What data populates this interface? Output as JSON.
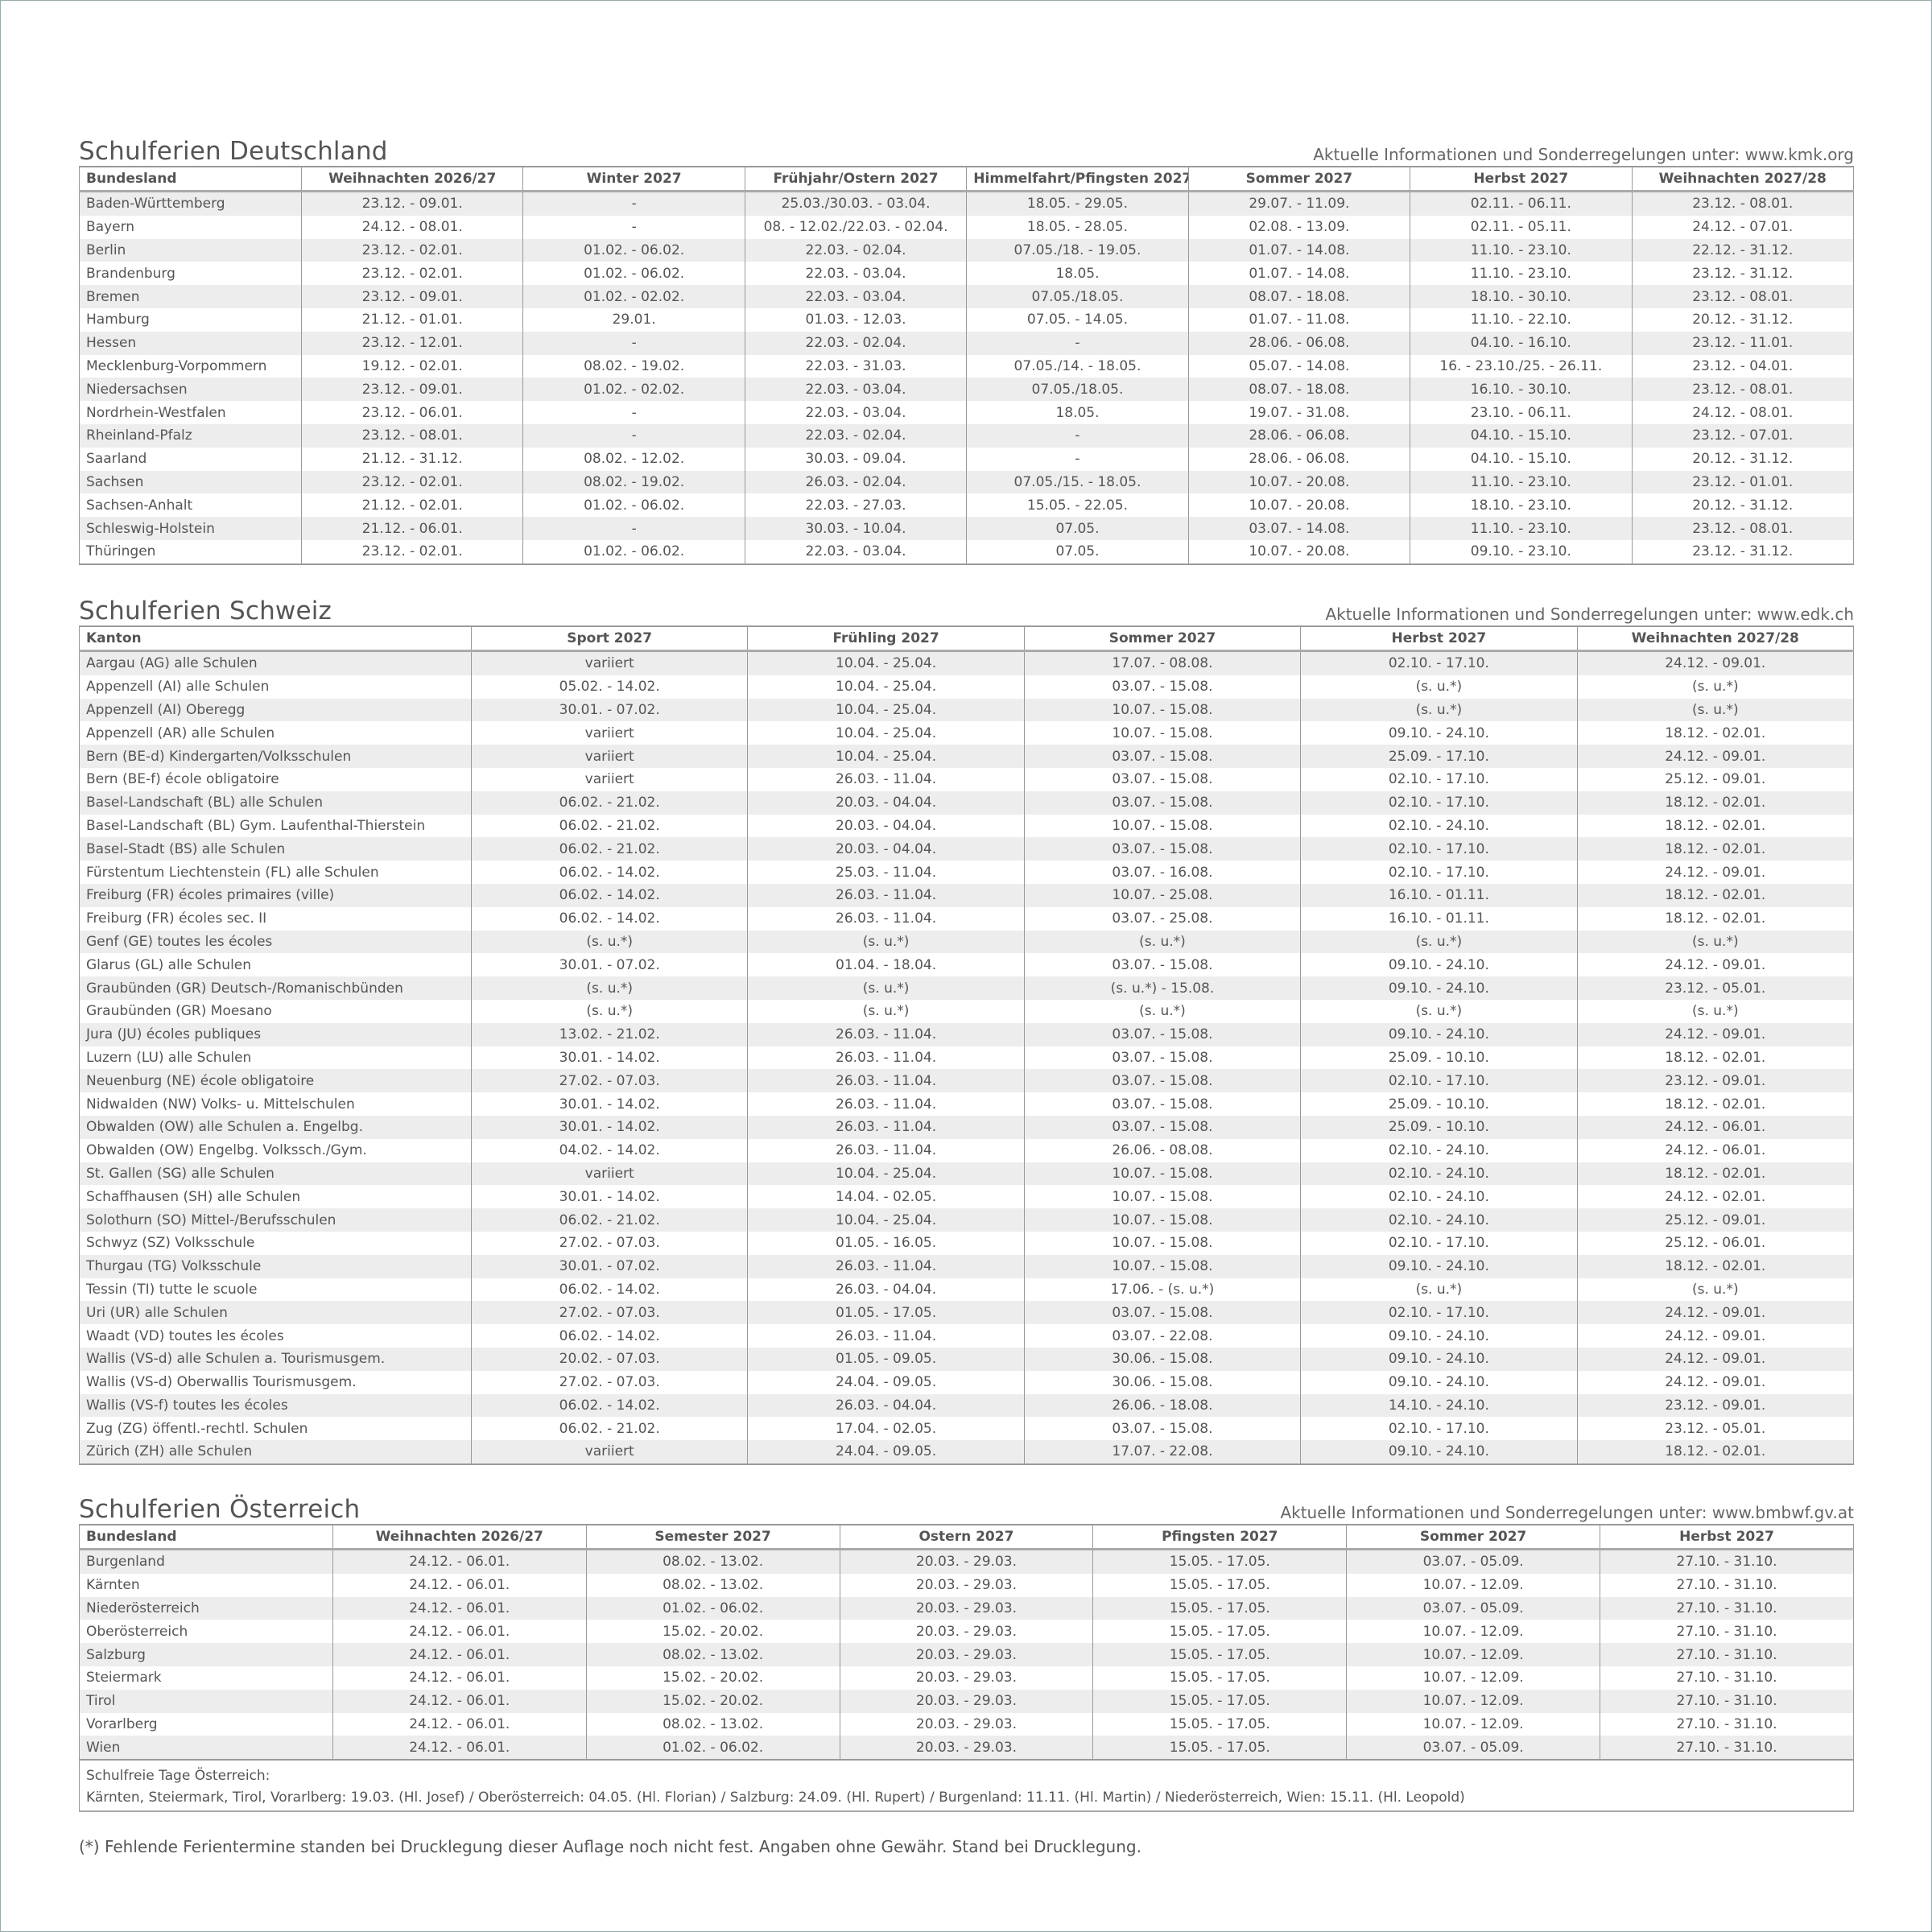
{
  "germany": {
    "title": "Schulferien Deutschland",
    "info": "Aktuelle Informationen und Sonderregelungen unter: www.kmk.org",
    "columns": [
      "Bundesland",
      "Weihnachten 2026/27",
      "Winter 2027",
      "Frühjahr/Ostern 2027",
      "Himmelfahrt/Pfingsten 2027",
      "Sommer 2027",
      "Herbst 2027",
      "Weihnachten 2027/28"
    ],
    "rows": [
      [
        "Baden-Württemberg",
        "23.12. - 09.01.",
        "-",
        "25.03./30.03. - 03.04.",
        "18.05. - 29.05.",
        "29.07. - 11.09.",
        "02.11. - 06.11.",
        "23.12. - 08.01."
      ],
      [
        "Bayern",
        "24.12. - 08.01.",
        "-",
        "08. - 12.02./22.03. - 02.04.",
        "18.05. - 28.05.",
        "02.08. - 13.09.",
        "02.11. - 05.11.",
        "24.12. - 07.01."
      ],
      [
        "Berlin",
        "23.12. - 02.01.",
        "01.02. - 06.02.",
        "22.03. - 02.04.",
        "07.05./18. - 19.05.",
        "01.07. - 14.08.",
        "11.10. - 23.10.",
        "22.12. - 31.12."
      ],
      [
        "Brandenburg",
        "23.12. - 02.01.",
        "01.02. - 06.02.",
        "22.03. - 03.04.",
        "18.05.",
        "01.07. - 14.08.",
        "11.10. - 23.10.",
        "23.12. - 31.12."
      ],
      [
        "Bremen",
        "23.12. - 09.01.",
        "01.02. - 02.02.",
        "22.03. - 03.04.",
        "07.05./18.05.",
        "08.07. - 18.08.",
        "18.10. - 30.10.",
        "23.12. - 08.01."
      ],
      [
        "Hamburg",
        "21.12. - 01.01.",
        "29.01.",
        "01.03. - 12.03.",
        "07.05. - 14.05.",
        "01.07. - 11.08.",
        "11.10. - 22.10.",
        "20.12. - 31.12."
      ],
      [
        "Hessen",
        "23.12. - 12.01.",
        "-",
        "22.03. - 02.04.",
        "-",
        "28.06. - 06.08.",
        "04.10. - 16.10.",
        "23.12. - 11.01."
      ],
      [
        "Mecklenburg-Vorpommern",
        "19.12. - 02.01.",
        "08.02. - 19.02.",
        "22.03. - 31.03.",
        "07.05./14. - 18.05.",
        "05.07. - 14.08.",
        "16. - 23.10./25. - 26.11.",
        "23.12. - 04.01."
      ],
      [
        "Niedersachsen",
        "23.12. - 09.01.",
        "01.02. - 02.02.",
        "22.03. - 03.04.",
        "07.05./18.05.",
        "08.07. - 18.08.",
        "16.10. - 30.10.",
        "23.12. - 08.01."
      ],
      [
        "Nordrhein-Westfalen",
        "23.12. - 06.01.",
        "-",
        "22.03. - 03.04.",
        "18.05.",
        "19.07. - 31.08.",
        "23.10. - 06.11.",
        "24.12. - 08.01."
      ],
      [
        "Rheinland-Pfalz",
        "23.12. - 08.01.",
        "-",
        "22.03. - 02.04.",
        "-",
        "28.06. - 06.08.",
        "04.10. - 15.10.",
        "23.12. - 07.01."
      ],
      [
        "Saarland",
        "21.12. - 31.12.",
        "08.02. - 12.02.",
        "30.03. - 09.04.",
        "-",
        "28.06. - 06.08.",
        "04.10. - 15.10.",
        "20.12. - 31.12."
      ],
      [
        "Sachsen",
        "23.12. - 02.01.",
        "08.02. - 19.02.",
        "26.03. - 02.04.",
        "07.05./15. - 18.05.",
        "10.07. - 20.08.",
        "11.10. - 23.10.",
        "23.12. - 01.01."
      ],
      [
        "Sachsen-Anhalt",
        "21.12. - 02.01.",
        "01.02. - 06.02.",
        "22.03. - 27.03.",
        "15.05. - 22.05.",
        "10.07. - 20.08.",
        "18.10. - 23.10.",
        "20.12. - 31.12."
      ],
      [
        "Schleswig-Holstein",
        "21.12. - 06.01.",
        "-",
        "30.03. - 10.04.",
        "07.05.",
        "03.07. - 14.08.",
        "11.10. - 23.10.",
        "23.12. - 08.01."
      ],
      [
        "Thüringen",
        "23.12. - 02.01.",
        "01.02. - 06.02.",
        "22.03. - 03.04.",
        "07.05.",
        "10.07. - 20.08.",
        "09.10. - 23.10.",
        "23.12. - 31.12."
      ]
    ]
  },
  "switzerland": {
    "title": "Schulferien Schweiz",
    "info": "Aktuelle Informationen und Sonderregelungen unter: www.edk.ch",
    "columns": [
      "Kanton",
      "Sport 2027",
      "Frühling 2027",
      "Sommer 2027",
      "Herbst 2027",
      "Weihnachten 2027/28"
    ],
    "rows": [
      [
        "Aargau (AG) alle Schulen",
        "variiert",
        "10.04. - 25.04.",
        "17.07. - 08.08.",
        "02.10. - 17.10.",
        "24.12. - 09.01."
      ],
      [
        "Appenzell (AI) alle Schulen",
        "05.02. - 14.02.",
        "10.04. - 25.04.",
        "03.07. - 15.08.",
        "(s. u.*)",
        "(s. u.*)"
      ],
      [
        "Appenzell (AI) Oberegg",
        "30.01. - 07.02.",
        "10.04. - 25.04.",
        "10.07. - 15.08.",
        "(s. u.*)",
        "(s. u.*)"
      ],
      [
        "Appenzell (AR) alle Schulen",
        "variiert",
        "10.04. - 25.04.",
        "10.07. - 15.08.",
        "09.10. - 24.10.",
        "18.12. - 02.01."
      ],
      [
        "Bern (BE-d) Kindergarten/Volksschulen",
        "variiert",
        "10.04. - 25.04.",
        "03.07. - 15.08.",
        "25.09. - 17.10.",
        "24.12. - 09.01."
      ],
      [
        "Bern (BE-f) école obligatoire",
        "variiert",
        "26.03. - 11.04.",
        "03.07. - 15.08.",
        "02.10. - 17.10.",
        "25.12. - 09.01."
      ],
      [
        "Basel-Landschaft (BL) alle Schulen",
        "06.02. - 21.02.",
        "20.03. - 04.04.",
        "03.07. - 15.08.",
        "02.10. - 17.10.",
        "18.12. - 02.01."
      ],
      [
        "Basel-Landschaft (BL) Gym. Laufenthal-Thierstein",
        "06.02. - 21.02.",
        "20.03. - 04.04.",
        "10.07. - 15.08.",
        "02.10. - 24.10.",
        "18.12. - 02.01."
      ],
      [
        "Basel-Stadt (BS) alle Schulen",
        "06.02. - 21.02.",
        "20.03. - 04.04.",
        "03.07. - 15.08.",
        "02.10. - 17.10.",
        "18.12. - 02.01."
      ],
      [
        "Fürstentum Liechtenstein (FL) alle Schulen",
        "06.02. - 14.02.",
        "25.03. - 11.04.",
        "03.07. - 16.08.",
        "02.10. - 17.10.",
        "24.12. - 09.01."
      ],
      [
        "Freiburg (FR) écoles primaires (ville)",
        "06.02. - 14.02.",
        "26.03. - 11.04.",
        "10.07. - 25.08.",
        "16.10. - 01.11.",
        "18.12. - 02.01."
      ],
      [
        "Freiburg (FR) écoles sec. II",
        "06.02. - 14.02.",
        "26.03. - 11.04.",
        "03.07. - 25.08.",
        "16.10. - 01.11.",
        "18.12. - 02.01."
      ],
      [
        "Genf (GE) toutes les écoles",
        "(s. u.*)",
        "(s. u.*)",
        "(s. u.*)",
        "(s. u.*)",
        "(s. u.*)"
      ],
      [
        "Glarus (GL) alle Schulen",
        "30.01. - 07.02.",
        "01.04. - 18.04.",
        "03.07. - 15.08.",
        "09.10. - 24.10.",
        "24.12. - 09.01."
      ],
      [
        "Graubünden (GR) Deutsch-/Romanischbünden",
        "(s. u.*)",
        "(s. u.*)",
        "(s. u.*) - 15.08.",
        "09.10. - 24.10.",
        "23.12. - 05.01."
      ],
      [
        "Graubünden (GR) Moesano",
        "(s. u.*)",
        "(s. u.*)",
        "(s. u.*)",
        "(s. u.*)",
        "(s. u.*)"
      ],
      [
        "Jura (JU) écoles publiques",
        "13.02. - 21.02.",
        "26.03. - 11.04.",
        "03.07. - 15.08.",
        "09.10. - 24.10.",
        "24.12. - 09.01."
      ],
      [
        "Luzern (LU) alle Schulen",
        "30.01. - 14.02.",
        "26.03. - 11.04.",
        "03.07. - 15.08.",
        "25.09. - 10.10.",
        "18.12. - 02.01."
      ],
      [
        "Neuenburg (NE) école obligatoire",
        "27.02. - 07.03.",
        "26.03. - 11.04.",
        "03.07. - 15.08.",
        "02.10. - 17.10.",
        "23.12. - 09.01."
      ],
      [
        "Nidwalden (NW) Volks- u. Mittelschulen",
        "30.01. - 14.02.",
        "26.03. - 11.04.",
        "03.07. - 15.08.",
        "25.09. - 10.10.",
        "18.12. - 02.01."
      ],
      [
        "Obwalden (OW) alle Schulen a. Engelbg.",
        "30.01. - 14.02.",
        "26.03. - 11.04.",
        "03.07. - 15.08.",
        "25.09. - 10.10.",
        "24.12. - 06.01."
      ],
      [
        "Obwalden (OW) Engelbg. Volkssch./Gym.",
        "04.02. - 14.02.",
        "26.03. - 11.04.",
        "26.06. - 08.08.",
        "02.10. - 24.10.",
        "24.12. - 06.01."
      ],
      [
        "St. Gallen (SG) alle Schulen",
        "variiert",
        "10.04. - 25.04.",
        "10.07. - 15.08.",
        "02.10. - 24.10.",
        "18.12. - 02.01."
      ],
      [
        "Schaffhausen (SH) alle Schulen",
        "30.01. - 14.02.",
        "14.04. - 02.05.",
        "10.07. - 15.08.",
        "02.10. - 24.10.",
        "24.12. - 02.01."
      ],
      [
        "Solothurn (SO) Mittel-/Berufsschulen",
        "06.02. - 21.02.",
        "10.04. - 25.04.",
        "10.07. - 15.08.",
        "02.10. - 24.10.",
        "25.12. - 09.01."
      ],
      [
        "Schwyz (SZ) Volksschule",
        "27.02. - 07.03.",
        "01.05. - 16.05.",
        "10.07. - 15.08.",
        "02.10. - 17.10.",
        "25.12. - 06.01."
      ],
      [
        "Thurgau (TG) Volksschule",
        "30.01. - 07.02.",
        "26.03. - 11.04.",
        "10.07. - 15.08.",
        "09.10. - 24.10.",
        "18.12. - 02.01."
      ],
      [
        "Tessin (TI) tutte le scuole",
        "06.02. - 14.02.",
        "26.03. - 04.04.",
        "17.06. - (s. u.*)",
        "(s. u.*)",
        "(s. u.*)"
      ],
      [
        "Uri (UR) alle Schulen",
        "27.02. - 07.03.",
        "01.05. - 17.05.",
        "03.07. - 15.08.",
        "02.10. - 17.10.",
        "24.12. - 09.01."
      ],
      [
        "Waadt (VD) toutes les écoles",
        "06.02. - 14.02.",
        "26.03. - 11.04.",
        "03.07. - 22.08.",
        "09.10. - 24.10.",
        "24.12. - 09.01."
      ],
      [
        "Wallis (VS-d) alle Schulen a. Tourismusgem.",
        "20.02. - 07.03.",
        "01.05. - 09.05.",
        "30.06. - 15.08.",
        "09.10. - 24.10.",
        "24.12. - 09.01."
      ],
      [
        "Wallis (VS-d) Oberwallis Tourismusgem.",
        "27.02. - 07.03.",
        "24.04. - 09.05.",
        "30.06. - 15.08.",
        "09.10. - 24.10.",
        "24.12. - 09.01."
      ],
      [
        "Wallis (VS-f) toutes les écoles",
        "06.02. - 14.02.",
        "26.03. - 04.04.",
        "26.06. - 18.08.",
        "14.10. - 24.10.",
        "23.12. - 09.01."
      ],
      [
        "Zug (ZG) öffentl.-rechtl. Schulen",
        "06.02. - 21.02.",
        "17.04. - 02.05.",
        "03.07. - 15.08.",
        "02.10. - 17.10.",
        "23.12. - 05.01."
      ],
      [
        "Zürich (ZH) alle Schulen",
        "variiert",
        "24.04. - 09.05.",
        "17.07. - 22.08.",
        "09.10. - 24.10.",
        "18.12. - 02.01."
      ]
    ]
  },
  "austria": {
    "title": "Schulferien Österreich",
    "info": "Aktuelle Informationen und Sonderregelungen unter: www.bmbwf.gv.at",
    "columns": [
      "Bundesland",
      "Weihnachten 2026/27",
      "Semester 2027",
      "Ostern 2027",
      "Pfingsten 2027",
      "Sommer 2027",
      "Herbst 2027"
    ],
    "rows": [
      [
        "Burgenland",
        "24.12. - 06.01.",
        "08.02. - 13.02.",
        "20.03. - 29.03.",
        "15.05. - 17.05.",
        "03.07. - 05.09.",
        "27.10. - 31.10."
      ],
      [
        "Kärnten",
        "24.12. - 06.01.",
        "08.02. - 13.02.",
        "20.03. - 29.03.",
        "15.05. - 17.05.",
        "10.07. - 12.09.",
        "27.10. - 31.10."
      ],
      [
        "Niederösterreich",
        "24.12. - 06.01.",
        "01.02. - 06.02.",
        "20.03. - 29.03.",
        "15.05. - 17.05.",
        "03.07. - 05.09.",
        "27.10. - 31.10."
      ],
      [
        "Oberösterreich",
        "24.12. - 06.01.",
        "15.02. - 20.02.",
        "20.03. - 29.03.",
        "15.05. - 17.05.",
        "10.07. - 12.09.",
        "27.10. - 31.10."
      ],
      [
        "Salzburg",
        "24.12. - 06.01.",
        "08.02. - 13.02.",
        "20.03. - 29.03.",
        "15.05. - 17.05.",
        "10.07. - 12.09.",
        "27.10. - 31.10."
      ],
      [
        "Steiermark",
        "24.12. - 06.01.",
        "15.02. - 20.02.",
        "20.03. - 29.03.",
        "15.05. - 17.05.",
        "10.07. - 12.09.",
        "27.10. - 31.10."
      ],
      [
        "Tirol",
        "24.12. - 06.01.",
        "15.02. - 20.02.",
        "20.03. - 29.03.",
        "15.05. - 17.05.",
        "10.07. - 12.09.",
        "27.10. - 31.10."
      ],
      [
        "Vorarlberg",
        "24.12. - 06.01.",
        "08.02. - 13.02.",
        "20.03. - 29.03.",
        "15.05. - 17.05.",
        "10.07. - 12.09.",
        "27.10. - 31.10."
      ],
      [
        "Wien",
        "24.12. - 06.01.",
        "01.02. - 06.02.",
        "20.03. - 29.03.",
        "15.05. - 17.05.",
        "03.07. - 05.09.",
        "27.10. - 31.10."
      ]
    ],
    "notes_title": "Schulfreie Tage Österreich:",
    "notes_text": "Kärnten, Steiermark, Tirol, Vorarlberg: 19.03. (Hl. Josef) / Oberösterreich: 04.05. (Hl. Florian) / Salzburg: 24.09. (Hl. Rupert) / Burgenland: 11.11. (Hl. Martin) / Niederösterreich, Wien: 15.11. (Hl. Leopold)"
  },
  "footnote": "(*) Fehlende Ferientermine standen bei Drucklegung dieser Auflage noch nicht fest. Angaben ohne Gewähr. Stand bei Drucklegung.",
  "colors": {
    "text": "#555555",
    "stripe": "#ededed",
    "border": "#999999"
  }
}
